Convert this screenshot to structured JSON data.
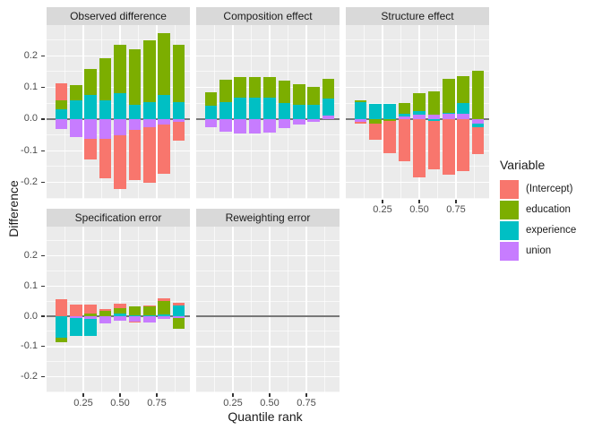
{
  "figure": {
    "y_axis_title": "Difference",
    "x_axis_title": "Quantile rank"
  },
  "legend": {
    "title": "Variable",
    "items": [
      {
        "label": "(Intercept)",
        "color": "#F8766D"
      },
      {
        "label": "education",
        "color": "#7CAE00"
      },
      {
        "label": "experience",
        "color": "#00BFC4"
      },
      {
        "label": "union",
        "color": "#C77CFF"
      }
    ]
  },
  "chart_data": {
    "type": "bar",
    "stacked": true,
    "title": "",
    "xlabel": "Quantile rank",
    "ylabel": "Difference",
    "legend_position": "right",
    "grid": true,
    "x": [
      0.1,
      0.2,
      0.3,
      0.4,
      0.5,
      0.6,
      0.7,
      0.8,
      0.9
    ],
    "x_ticks": {
      "values": [
        0.25,
        0.5,
        0.75
      ],
      "labels": [
        "0.25",
        "0.50",
        "0.75"
      ],
      "minor": [
        0.125,
        0.375,
        0.625,
        0.875
      ]
    },
    "y_ticks": {
      "values": [
        0.2,
        0.1,
        0,
        -0.1,
        -0.2
      ],
      "labels": [
        "0.2",
        "0.1",
        "0.0",
        "-0.1",
        "-0.2"
      ],
      "minor": [
        0.25,
        0.15,
        0.05,
        -0.05,
        -0.15,
        -0.25
      ]
    },
    "x_domain": [
      0,
      0.9756
    ],
    "y_domain": [
      -0.252,
      0.297
    ],
    "stack_order": [
      "union",
      "experience",
      "education",
      "(Intercept)"
    ],
    "panels": [
      {
        "title": "Observed difference",
        "series": {
          "(Intercept)": [
            0.053,
            0,
            -0.064,
            -0.124,
            -0.169,
            -0.159,
            -0.174,
            -0.157,
            -0.059
          ],
          "education": [
            0.029,
            0.048,
            0.083,
            0.133,
            0.153,
            0.177,
            0.193,
            0.196,
            0.179
          ],
          "experience": [
            0.031,
            0.058,
            0.076,
            0.06,
            0.081,
            0.045,
            0.055,
            0.076,
            0.055
          ],
          "union": [
            -0.03,
            -0.056,
            -0.063,
            -0.063,
            -0.051,
            -0.034,
            -0.027,
            -0.017,
            -0.01
          ]
        }
      },
      {
        "title": "Composition effect",
        "series": {
          "(Intercept)": [
            0,
            0,
            0,
            0,
            0,
            0,
            0,
            0,
            0
          ],
          "education": [
            0.043,
            0.069,
            0.066,
            0.066,
            0.064,
            0.071,
            0.065,
            0.057,
            0.061
          ],
          "experience": [
            0.041,
            0.055,
            0.068,
            0.068,
            0.068,
            0.05,
            0.045,
            0.044,
            0.055
          ],
          "union": [
            -0.025,
            -0.04,
            -0.046,
            -0.046,
            -0.042,
            -0.029,
            -0.017,
            -0.008,
            0.01
          ]
        }
      },
      {
        "title": "Structure effect",
        "series": {
          "(Intercept)": [
            -0.007,
            -0.053,
            -0.102,
            -0.132,
            -0.185,
            -0.155,
            -0.175,
            -0.165,
            -0.084
          ],
          "education": [
            0.005,
            -0.013,
            -0.005,
            0.033,
            0.059,
            0.075,
            0.107,
            0.085,
            0.154
          ],
          "experience": [
            0.055,
            0.047,
            0.047,
            0.009,
            0.011,
            -0.005,
            0.004,
            0.033,
            -0.014
          ],
          "union": [
            -0.008,
            0,
            0,
            0.009,
            0.013,
            0.014,
            0.017,
            0.017,
            -0.013
          ]
        }
      },
      {
        "title": "Specification error",
        "series": {
          "(Intercept)": [
            0.056,
            0.04,
            0.031,
            0.008,
            0.015,
            -0.004,
            0.004,
            0.008,
            0.01
          ],
          "education": [
            -0.016,
            0,
            0.009,
            0.017,
            0.017,
            0.032,
            0.031,
            0.046,
            -0.033
          ],
          "experience": [
            -0.07,
            -0.057,
            -0.055,
            0,
            0.009,
            0.002,
            0.002,
            0.005,
            0.035
          ],
          "union": [
            0,
            -0.007,
            -0.009,
            -0.023,
            -0.014,
            -0.017,
            -0.02,
            -0.009,
            -0.007
          ]
        }
      },
      {
        "title": "Reweighting error",
        "series": {
          "(Intercept)": [
            0,
            0,
            0,
            0,
            0,
            0,
            0,
            0,
            0
          ],
          "education": [
            0,
            0,
            0,
            0,
            0,
            0,
            0,
            0,
            0
          ],
          "experience": [
            0,
            0,
            0,
            0,
            0,
            0,
            0,
            0,
            0
          ],
          "union": [
            0,
            0,
            0,
            0,
            0,
            0,
            0,
            0,
            0
          ]
        }
      }
    ]
  }
}
